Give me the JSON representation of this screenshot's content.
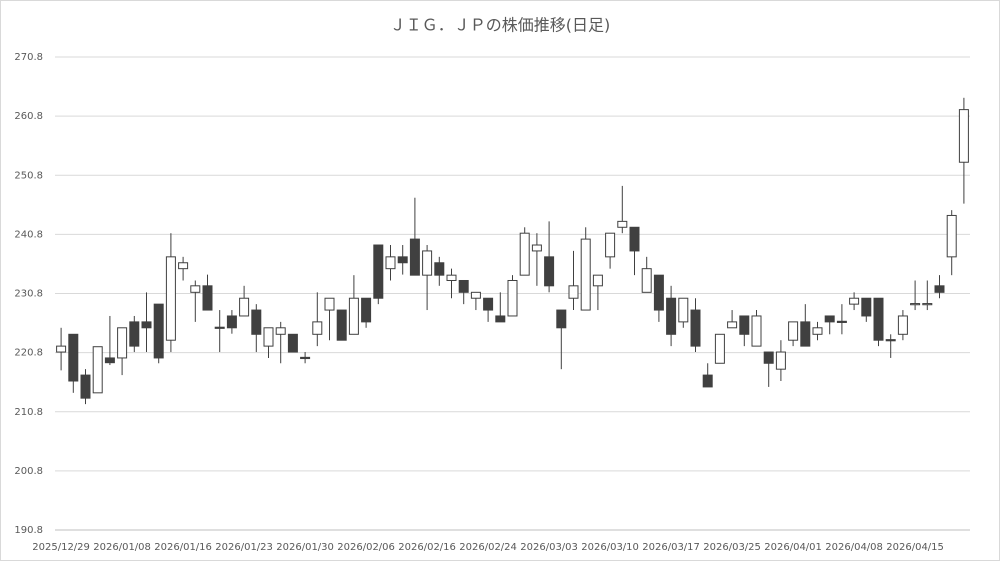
{
  "chart_data": {
    "type": "candlestick",
    "title": "ＪＩＧ．ＪＰの株価推移(日足)",
    "categories": [
      "2025/12/29",
      null,
      null,
      null,
      null,
      "2026/01/08",
      null,
      null,
      null,
      null,
      "2026/01/16",
      null,
      null,
      null,
      null,
      "2026/01/23",
      null,
      null,
      null,
      null,
      "2026/01/30",
      null,
      null,
      null,
      null,
      "2026/02/06",
      null,
      null,
      null,
      null,
      "2026/02/16",
      null,
      null,
      null,
      null,
      "2026/02/24",
      null,
      null,
      null,
      null,
      "2026/03/03",
      null,
      null,
      null,
      null,
      "2026/03/10",
      null,
      null,
      null,
      null,
      "2026/03/17",
      null,
      null,
      null,
      null,
      "2026/03/25",
      null,
      null,
      null,
      null,
      "2026/04/01",
      null,
      null,
      null,
      null,
      "2026/04/08",
      null,
      null,
      null,
      null,
      "2026/04/15",
      null,
      null,
      null,
      null
    ],
    "open": [
      220.9,
      223.9,
      217.0,
      214.0,
      219.9,
      219.9,
      226.0,
      226.0,
      229.0,
      222.9,
      235.0,
      231.0,
      232.1,
      225.1,
      227.0,
      227.0,
      228.0,
      221.9,
      223.9,
      223.9,
      220.0,
      223.9,
      228.0,
      228.0,
      223.9,
      230.0,
      239.0,
      235.0,
      237.0,
      240.0,
      233.9,
      236.0,
      233.0,
      233.0,
      230.0,
      230.0,
      227.0,
      227.0,
      233.9,
      238.0,
      237.0,
      228.0,
      230.0,
      228.0,
      232.1,
      237.0,
      242.0,
      242.0,
      231.0,
      233.9,
      230.0,
      226.0,
      228.0,
      217.0,
      219.0,
      225.0,
      227.0,
      221.9,
      220.9,
      218.0,
      222.9,
      226.0,
      223.9,
      227.0,
      226.1,
      229.0,
      230.0,
      230.0,
      223.0,
      223.9,
      228.9,
      228.9,
      232.1,
      237.0,
      253.0
    ],
    "high": [
      225.0,
      223.9,
      218.0,
      221.8,
      227.0,
      225.0,
      227.0,
      231.0,
      229.0,
      241.0,
      237.0,
      233.0,
      234.0,
      228.0,
      228.0,
      232.1,
      229.0,
      225.0,
      226.0,
      223.9,
      220.9,
      231.0,
      230.0,
      228.0,
      233.9,
      230.0,
      239.0,
      239.0,
      239.0,
      247.0,
      239.0,
      237.0,
      235.0,
      233.0,
      231.0,
      230.0,
      231.0,
      233.9,
      242.0,
      241.0,
      243.0,
      228.0,
      238.0,
      242.0,
      233.9,
      241.0,
      249.0,
      242.0,
      237.0,
      233.9,
      232.1,
      230.0,
      230.0,
      219.0,
      223.9,
      228.0,
      227.0,
      228.0,
      220.9,
      222.9,
      226.0,
      229.0,
      226.0,
      227.0,
      229.0,
      231.0,
      230.0,
      230.0,
      223.9,
      228.0,
      233.0,
      233.0,
      233.9,
      244.9,
      263.9
    ],
    "low": [
      217.8,
      214.0,
      212.1,
      214.0,
      218.7,
      217.0,
      220.9,
      220.9,
      219.0,
      220.9,
      233.0,
      226.0,
      228.0,
      220.9,
      224.0,
      227.0,
      220.9,
      219.9,
      219.0,
      220.9,
      219.0,
      221.9,
      222.9,
      222.9,
      223.9,
      225.0,
      229.0,
      233.0,
      234.0,
      233.9,
      228.0,
      232.1,
      230.0,
      229.0,
      228.0,
      226.0,
      226.0,
      227.0,
      233.9,
      232.1,
      231.0,
      218.0,
      228.0,
      228.0,
      228.0,
      235.0,
      241.0,
      233.9,
      231.0,
      226.0,
      221.9,
      225.0,
      220.9,
      215.0,
      219.0,
      225.0,
      221.9,
      221.9,
      215.0,
      216.0,
      221.9,
      221.9,
      222.9,
      223.9,
      223.9,
      228.0,
      226.0,
      221.9,
      219.9,
      222.9,
      228.0,
      228.0,
      230.0,
      233.9,
      246.0
    ],
    "close": [
      221.9,
      216.0,
      213.1,
      221.8,
      219.1,
      225.0,
      221.9,
      225.0,
      219.9,
      237.0,
      236.0,
      232.1,
      228.0,
      224.9,
      225.0,
      230.0,
      223.9,
      225.0,
      225.0,
      220.9,
      219.8,
      226.0,
      230.0,
      222.9,
      230.0,
      226.0,
      230.0,
      237.0,
      236.0,
      233.9,
      238.0,
      233.9,
      233.9,
      231.0,
      231.0,
      228.0,
      226.0,
      233.0,
      241.0,
      239.0,
      232.1,
      225.0,
      232.1,
      240.0,
      233.9,
      241.0,
      243.0,
      238.0,
      235.0,
      228.0,
      223.9,
      230.0,
      221.9,
      215.0,
      223.9,
      226.0,
      223.9,
      227.0,
      219.0,
      220.9,
      226.0,
      221.9,
      225.0,
      226.0,
      225.9,
      230.0,
      227.0,
      222.9,
      222.8,
      227.0,
      229.1,
      229.1,
      231.0,
      244.0,
      261.9
    ],
    "up_color": "#ffffff",
    "down_color": "#404040",
    "edge_color": "#404040",
    "ylim": [
      190.8,
      270.8
    ],
    "yticks": [
      190.8,
      200.8,
      210.8,
      220.8,
      230.8,
      240.8,
      250.8,
      260.8,
      270.8
    ],
    "grid": true
  }
}
